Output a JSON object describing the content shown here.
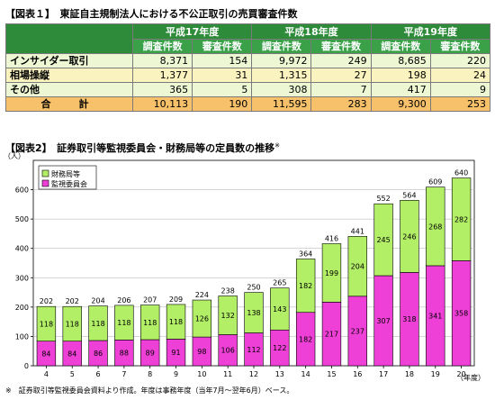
{
  "table1": {
    "heading": "【図表１】　東証自主規制法人における不公正取引の売買審査件数",
    "years": [
      "平成17年度",
      "平成18年度",
      "平成19年度"
    ],
    "subheaders": [
      "調査件数",
      "審査件数",
      "調査件数",
      "審査件数",
      "調査件数",
      "審査件数"
    ],
    "rows": [
      {
        "label": "インサイダー取引",
        "values": [
          "8,371",
          "154",
          "9,972",
          "249",
          "8,685",
          "220"
        ]
      },
      {
        "label": "相場操縦",
        "values": [
          "1,377",
          "31",
          "1,315",
          "27",
          "198",
          "24"
        ]
      },
      {
        "label": "その他",
        "values": [
          "365",
          "5",
          "308",
          "7",
          "417",
          "9"
        ]
      },
      {
        "label": "合　計",
        "values": [
          "10,113",
          "190",
          "11,595",
          "283",
          "9,300",
          "253"
        ]
      }
    ]
  },
  "chart_heading": "【図表2】　証券取引等監視委員会・財務局等の定員数の推移",
  "chart_heading_mark": "※",
  "note": "※　証券取引等監視委員会資料より作成。年度は事務年度（当年7月〜翌年6月）ベース。",
  "chart_data": {
    "type": "bar",
    "stacked": true,
    "categories": [
      "4",
      "5",
      "6",
      "7",
      "8",
      "9",
      "10",
      "11",
      "12",
      "13",
      "14",
      "15",
      "16",
      "17",
      "18",
      "19",
      "20"
    ],
    "series": [
      {
        "name": "監視委員会",
        "color": "#ee3fd6",
        "values": [
          84,
          84,
          86,
          88,
          89,
          91,
          98,
          106,
          112,
          122,
          182,
          217,
          237,
          307,
          318,
          341,
          358
        ]
      },
      {
        "name": "財務局等",
        "color": "#b2ee66",
        "values": [
          118,
          118,
          118,
          118,
          118,
          118,
          126,
          132,
          138,
          143,
          182,
          199,
          204,
          245,
          246,
          268,
          282
        ]
      }
    ],
    "totals": [
      202,
      202,
      204,
      206,
      207,
      209,
      224,
      238,
      250,
      265,
      364,
      416,
      441,
      552,
      564,
      609,
      640
    ],
    "ylabel": "（人）",
    "xlabel": "（年度）",
    "ylim": [
      0,
      700
    ],
    "yticks": [
      0,
      100,
      200,
      300,
      400,
      500,
      600
    ],
    "legend": [
      "財務局等",
      "監視委員会"
    ],
    "legend_position": "top-left"
  }
}
